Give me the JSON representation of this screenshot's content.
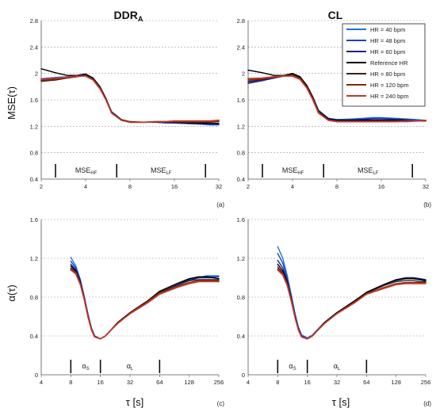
{
  "figure": {
    "col_titles": {
      "left_main": "DDR",
      "left_sub": "A",
      "right": "CL"
    },
    "mse_ylabel": "MSE(τ)",
    "alpha_ylabel": "α(τ)",
    "tau_xlabel": "τ [s]",
    "panel_labels": [
      "(a)",
      "(b)",
      "(c)",
      "(d)"
    ]
  },
  "legend": [
    {
      "name": "HR = 40 bpm",
      "color": "#1f6fe0"
    },
    {
      "name": "HR = 48 bpm",
      "color": "#1a3fc4"
    },
    {
      "name": "HR = 60 bpm",
      "color": "#12238a"
    },
    {
      "name": "Reference HR",
      "color": "#000000"
    },
    {
      "name": "HR = 80 bpm",
      "color": "#3b2413"
    },
    {
      "name": "HR = 120 bpm",
      "color": "#7a2a12"
    },
    {
      "name": "HR = 240 bpm",
      "color": "#c0392b"
    }
  ],
  "chart_data": [
    {
      "id": "a",
      "type": "line",
      "xscale": "log2",
      "xlim": [
        2,
        32
      ],
      "ylim": [
        0.4,
        2.8
      ],
      "xticks": [
        "2",
        "4",
        "8",
        "16",
        "32"
      ],
      "yticks": [
        "0.4",
        "0.8",
        "1.2",
        "1.6",
        "2",
        "2.4",
        "2.8"
      ],
      "ylabel": "MSE(τ)",
      "xlabel": "",
      "grid": true,
      "regions": [
        {
          "label": "MSE",
          "sub": "HF",
          "from": 2.5,
          "to": 6.5
        },
        {
          "label": "MSE",
          "sub": "LF",
          "from": 6.5,
          "to": 26
        }
      ],
      "x": [
        2,
        2.5,
        3,
        3.5,
        4,
        4.5,
        5,
        5.5,
        6,
        7,
        8,
        10,
        12,
        14,
        16,
        20,
        24,
        28,
        32
      ],
      "series": [
        {
          "name": "HR = 40 bpm",
          "values": [
            1.92,
            1.94,
            1.95,
            1.97,
            1.99,
            1.93,
            1.8,
            1.62,
            1.42,
            1.3,
            1.26,
            1.26,
            1.26,
            1.25,
            1.25,
            1.24,
            1.23,
            1.22,
            1.22
          ]
        },
        {
          "name": "HR = 48 bpm",
          "values": [
            1.9,
            1.92,
            1.94,
            1.96,
            1.98,
            1.92,
            1.79,
            1.61,
            1.42,
            1.3,
            1.26,
            1.26,
            1.26,
            1.25,
            1.25,
            1.24,
            1.24,
            1.23,
            1.23
          ]
        },
        {
          "name": "HR = 60 bpm",
          "values": [
            1.89,
            1.91,
            1.93,
            1.96,
            1.98,
            1.92,
            1.79,
            1.61,
            1.41,
            1.3,
            1.26,
            1.26,
            1.26,
            1.26,
            1.25,
            1.25,
            1.24,
            1.24,
            1.24
          ]
        },
        {
          "name": "Reference HR",
          "values": [
            2.07,
            2.01,
            1.97,
            1.97,
            1.99,
            1.93,
            1.8,
            1.62,
            1.41,
            1.3,
            1.27,
            1.26,
            1.26,
            1.26,
            1.26,
            1.25,
            1.25,
            1.24,
            1.24
          ]
        },
        {
          "name": "HR = 80 bpm",
          "values": [
            1.88,
            1.9,
            1.93,
            1.95,
            1.97,
            1.91,
            1.78,
            1.6,
            1.4,
            1.29,
            1.26,
            1.26,
            1.26,
            1.26,
            1.26,
            1.26,
            1.26,
            1.26,
            1.27
          ]
        },
        {
          "name": "HR = 120 bpm",
          "values": [
            1.89,
            1.91,
            1.93,
            1.95,
            1.97,
            1.91,
            1.78,
            1.6,
            1.4,
            1.29,
            1.26,
            1.26,
            1.27,
            1.27,
            1.27,
            1.27,
            1.27,
            1.27,
            1.28
          ]
        },
        {
          "name": "HR = 240 bpm",
          "values": [
            1.91,
            1.93,
            1.94,
            1.96,
            1.96,
            1.9,
            1.77,
            1.6,
            1.4,
            1.29,
            1.26,
            1.26,
            1.27,
            1.27,
            1.28,
            1.28,
            1.28,
            1.28,
            1.29
          ]
        }
      ]
    },
    {
      "id": "b",
      "type": "line",
      "xscale": "log2",
      "xlim": [
        2,
        32
      ],
      "ylim": [
        0.4,
        2.8
      ],
      "xticks": [
        "2",
        "4",
        "8",
        "16",
        "32"
      ],
      "yticks": [
        "0.4",
        "0.8",
        "1.2",
        "1.6",
        "2",
        "2.4",
        "2.8"
      ],
      "ylabel": "",
      "xlabel": "",
      "grid": true,
      "legend_position": "top-right",
      "regions": [
        {
          "label": "MSE",
          "sub": "HF",
          "from": 2.5,
          "to": 6.5
        },
        {
          "label": "MSE",
          "sub": "LF",
          "from": 6.5,
          "to": 26
        }
      ],
      "x": [
        2,
        2.5,
        3,
        3.5,
        4,
        4.5,
        5,
        5.5,
        6,
        7,
        8,
        10,
        12,
        14,
        16,
        20,
        24,
        28,
        32
      ],
      "series": [
        {
          "name": "HR = 40 bpm",
          "values": [
            1.86,
            1.9,
            1.93,
            1.96,
            1.99,
            1.94,
            1.82,
            1.64,
            1.44,
            1.32,
            1.3,
            1.31,
            1.32,
            1.33,
            1.33,
            1.32,
            1.31,
            1.3,
            1.29
          ]
        },
        {
          "name": "HR = 48 bpm",
          "values": [
            1.86,
            1.9,
            1.93,
            1.96,
            1.99,
            1.94,
            1.82,
            1.64,
            1.44,
            1.32,
            1.3,
            1.3,
            1.31,
            1.32,
            1.32,
            1.31,
            1.3,
            1.29,
            1.29
          ]
        },
        {
          "name": "HR = 60 bpm",
          "values": [
            1.85,
            1.89,
            1.93,
            1.96,
            1.99,
            1.94,
            1.81,
            1.63,
            1.43,
            1.31,
            1.29,
            1.29,
            1.3,
            1.3,
            1.3,
            1.3,
            1.29,
            1.28,
            1.28
          ]
        },
        {
          "name": "Reference HR",
          "values": [
            2.05,
            2.01,
            1.97,
            1.97,
            2.0,
            1.95,
            1.82,
            1.64,
            1.43,
            1.31,
            1.29,
            1.29,
            1.29,
            1.29,
            1.29,
            1.29,
            1.29,
            1.28,
            1.28
          ]
        },
        {
          "name": "HR = 80 bpm",
          "values": [
            1.88,
            1.91,
            1.94,
            1.96,
            1.98,
            1.93,
            1.8,
            1.62,
            1.42,
            1.3,
            1.28,
            1.28,
            1.28,
            1.28,
            1.28,
            1.28,
            1.28,
            1.28,
            1.28
          ]
        },
        {
          "name": "HR = 120 bpm",
          "values": [
            1.9,
            1.92,
            1.94,
            1.96,
            1.97,
            1.92,
            1.79,
            1.61,
            1.41,
            1.29,
            1.27,
            1.27,
            1.27,
            1.27,
            1.27,
            1.27,
            1.27,
            1.28,
            1.28
          ]
        },
        {
          "name": "HR = 240 bpm",
          "values": [
            1.92,
            1.93,
            1.95,
            1.96,
            1.96,
            1.91,
            1.78,
            1.6,
            1.4,
            1.29,
            1.27,
            1.27,
            1.27,
            1.27,
            1.27,
            1.27,
            1.28,
            1.28,
            1.29
          ]
        }
      ]
    },
    {
      "id": "c",
      "type": "line",
      "xscale": "log2",
      "xlim": [
        4,
        256
      ],
      "ylim": [
        0,
        1.6
      ],
      "xticks": [
        "4",
        "8",
        "16",
        "32",
        "64",
        "128",
        "256"
      ],
      "yticks": [
        "0",
        "0.4",
        "0.8",
        "1.2",
        "1.6"
      ],
      "ylabel": "α(τ)",
      "xlabel": "τ [s]",
      "grid": true,
      "regions": [
        {
          "label": "α",
          "sub": "S",
          "from": 8,
          "to": 16
        },
        {
          "label": "α",
          "sub": "L",
          "from": 16,
          "to": 64
        }
      ],
      "x": [
        8,
        9,
        10,
        11,
        12,
        13,
        14,
        16,
        18,
        20,
        24,
        32,
        48,
        64,
        96,
        128,
        160,
        192,
        224,
        256
      ],
      "series": [
        {
          "name": "HR = 40 bpm",
          "values": [
            1.21,
            1.12,
            0.98,
            0.8,
            0.62,
            0.48,
            0.4,
            0.37,
            0.4,
            0.45,
            0.53,
            0.63,
            0.75,
            0.84,
            0.92,
            0.97,
            1.0,
            1.02,
            1.02,
            1.02
          ]
        },
        {
          "name": "HR = 48 bpm",
          "values": [
            1.17,
            1.1,
            0.97,
            0.79,
            0.61,
            0.47,
            0.4,
            0.37,
            0.4,
            0.45,
            0.53,
            0.63,
            0.75,
            0.84,
            0.92,
            0.97,
            1.0,
            1.01,
            1.01,
            1.01
          ]
        },
        {
          "name": "HR = 60 bpm",
          "values": [
            1.14,
            1.08,
            0.96,
            0.79,
            0.61,
            0.47,
            0.39,
            0.37,
            0.4,
            0.45,
            0.54,
            0.64,
            0.76,
            0.85,
            0.93,
            0.98,
            1.0,
            1.0,
            1.0,
            0.99
          ]
        },
        {
          "name": "Reference HR",
          "values": [
            1.12,
            1.07,
            0.95,
            0.78,
            0.6,
            0.47,
            0.39,
            0.37,
            0.4,
            0.45,
            0.54,
            0.64,
            0.76,
            0.86,
            0.94,
            0.99,
            1.01,
            1.01,
            1.0,
            0.99
          ]
        },
        {
          "name": "HR = 80 bpm",
          "values": [
            1.1,
            1.06,
            0.94,
            0.78,
            0.6,
            0.46,
            0.39,
            0.37,
            0.4,
            0.45,
            0.54,
            0.64,
            0.76,
            0.85,
            0.93,
            0.97,
            0.98,
            0.98,
            0.98,
            0.98
          ]
        },
        {
          "name": "HR = 120 bpm",
          "values": [
            1.09,
            1.05,
            0.94,
            0.77,
            0.6,
            0.46,
            0.39,
            0.37,
            0.4,
            0.45,
            0.53,
            0.63,
            0.75,
            0.84,
            0.91,
            0.95,
            0.97,
            0.97,
            0.97,
            0.97
          ]
        },
        {
          "name": "HR = 240 bpm",
          "values": [
            1.08,
            1.04,
            0.93,
            0.77,
            0.59,
            0.46,
            0.39,
            0.37,
            0.4,
            0.45,
            0.53,
            0.63,
            0.74,
            0.83,
            0.9,
            0.94,
            0.96,
            0.96,
            0.96,
            0.96
          ]
        }
      ]
    },
    {
      "id": "d",
      "type": "line",
      "xscale": "log2",
      "xlim": [
        4,
        256
      ],
      "ylim": [
        0,
        1.6
      ],
      "xticks": [
        "4",
        "8",
        "16",
        "32",
        "64",
        "128",
        "256"
      ],
      "yticks": [
        "0",
        "0.4",
        "0.8",
        "1.2",
        "1.6"
      ],
      "ylabel": "",
      "xlabel": "τ [s]",
      "grid": true,
      "regions": [
        {
          "label": "α",
          "sub": "S",
          "from": 8,
          "to": 16
        },
        {
          "label": "α",
          "sub": "L",
          "from": 16,
          "to": 64
        }
      ],
      "x": [
        8,
        9,
        10,
        11,
        12,
        13,
        14,
        16,
        18,
        20,
        24,
        32,
        48,
        64,
        96,
        128,
        160,
        192,
        224,
        256
      ],
      "series": [
        {
          "name": "HR = 40 bpm",
          "values": [
            1.32,
            1.2,
            1.02,
            0.82,
            0.63,
            0.49,
            0.41,
            0.38,
            0.41,
            0.46,
            0.54,
            0.64,
            0.75,
            0.84,
            0.92,
            0.97,
            0.99,
            0.99,
            0.98,
            0.97
          ]
        },
        {
          "name": "HR = 48 bpm",
          "values": [
            1.25,
            1.15,
            0.99,
            0.8,
            0.62,
            0.48,
            0.4,
            0.37,
            0.4,
            0.45,
            0.54,
            0.64,
            0.75,
            0.84,
            0.92,
            0.97,
            0.99,
            0.99,
            0.98,
            0.97
          ]
        },
        {
          "name": "HR = 60 bpm",
          "values": [
            1.18,
            1.1,
            0.96,
            0.79,
            0.61,
            0.47,
            0.4,
            0.37,
            0.4,
            0.45,
            0.54,
            0.64,
            0.75,
            0.85,
            0.93,
            0.98,
            1.0,
            1.0,
            0.99,
            0.98
          ]
        },
        {
          "name": "Reference HR",
          "values": [
            1.14,
            1.07,
            0.95,
            0.78,
            0.6,
            0.47,
            0.39,
            0.37,
            0.4,
            0.45,
            0.54,
            0.64,
            0.76,
            0.85,
            0.93,
            0.98,
            0.99,
            0.99,
            0.98,
            0.97
          ]
        },
        {
          "name": "HR = 80 bpm",
          "values": [
            1.11,
            1.05,
            0.94,
            0.77,
            0.6,
            0.46,
            0.39,
            0.37,
            0.4,
            0.45,
            0.53,
            0.63,
            0.75,
            0.84,
            0.92,
            0.96,
            0.97,
            0.97,
            0.96,
            0.96
          ]
        },
        {
          "name": "HR = 120 bpm",
          "values": [
            1.09,
            1.04,
            0.93,
            0.77,
            0.59,
            0.46,
            0.39,
            0.37,
            0.4,
            0.45,
            0.53,
            0.63,
            0.74,
            0.83,
            0.9,
            0.94,
            0.95,
            0.95,
            0.95,
            0.95
          ]
        },
        {
          "name": "HR = 240 bpm",
          "values": [
            1.08,
            1.03,
            0.92,
            0.76,
            0.59,
            0.46,
            0.39,
            0.37,
            0.4,
            0.45,
            0.53,
            0.63,
            0.74,
            0.83,
            0.89,
            0.93,
            0.94,
            0.94,
            0.94,
            0.94
          ]
        }
      ]
    }
  ]
}
